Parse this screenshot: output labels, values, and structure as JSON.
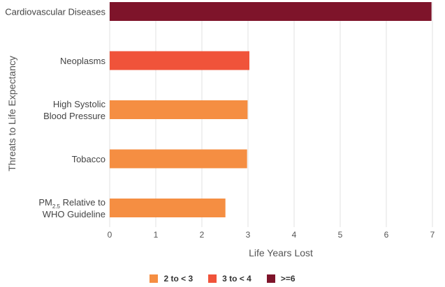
{
  "chart_data": {
    "type": "bar",
    "orientation": "horizontal",
    "ylabel": "Threats to Life Expectancy",
    "xlabel": "Life Years Lost",
    "xlim": [
      0,
      7
    ],
    "xticks": [
      "0",
      "1",
      "2",
      "3",
      "4",
      "5",
      "6",
      "7"
    ],
    "grid": "vertical",
    "categories": [
      [
        "Cardiovascular Diseases"
      ],
      [
        "Neoplasms"
      ],
      [
        "High Systolic",
        "Blood Pressure"
      ],
      [
        "Tobacco"
      ],
      [
        "PM2.5 Relative to",
        "WHO Guideline"
      ]
    ],
    "values": [
      6.98,
      3.03,
      2.99,
      2.98,
      2.51
    ],
    "bar_groups": [
      ">=6",
      "3 to < 4",
      "2 to < 3",
      "2 to < 3",
      "2 to < 3"
    ],
    "legend": [
      {
        "label": "2 to < 3",
        "color": "#F58E42"
      },
      {
        "label": "3 to < 4",
        "color": "#F0533A"
      },
      {
        "label": ">=6",
        "color": "#7E142A"
      }
    ],
    "legend_position": "bottom"
  }
}
